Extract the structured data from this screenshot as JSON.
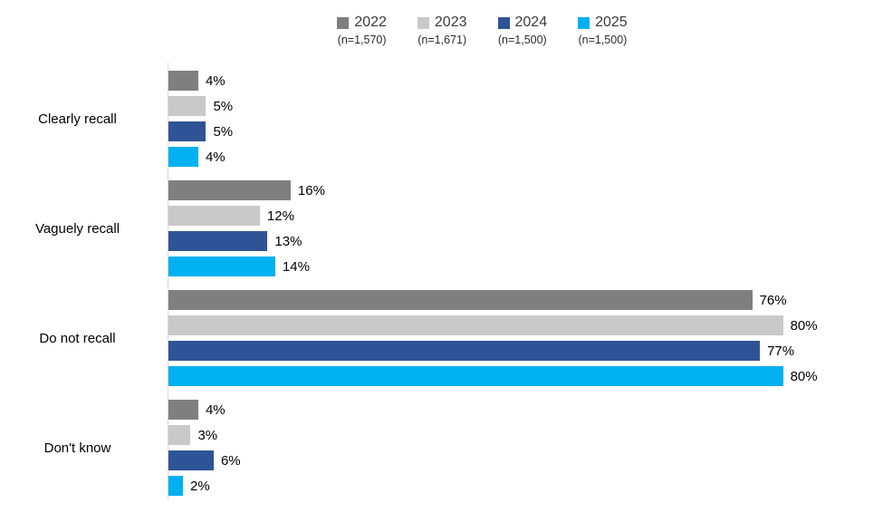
{
  "legend": {
    "items": [
      {
        "label": "2022",
        "n_label": "(n=1,570)",
        "color": "#7f7f7f"
      },
      {
        "label": "2023",
        "n_label": "(n=1,671)",
        "color": "#c9c9c9"
      },
      {
        "label": "2024",
        "n_label": "(n=1,500)",
        "color": "#2f5496"
      },
      {
        "label": "2025",
        "n_label": "(n=1,500)",
        "color": "#00b0f0"
      }
    ]
  },
  "chart_data": {
    "type": "bar",
    "orientation": "horizontal",
    "title": "",
    "xlabel": "",
    "ylabel": "",
    "categories": [
      "Clearly recall",
      "Vaguely recall",
      "Do not recall",
      "Don't know"
    ],
    "series": [
      {
        "name": "2022",
        "n_label": "(n=1,570)",
        "color": "#7f7f7f",
        "values": [
          4,
          16,
          76,
          4
        ]
      },
      {
        "name": "2023",
        "n_label": "(n=1,671)",
        "color": "#c9c9c9",
        "values": [
          5,
          12,
          80,
          3
        ]
      },
      {
        "name": "2024",
        "n_label": "(n=1,500)",
        "color": "#2f5496",
        "values": [
          5,
          13,
          77,
          6
        ]
      },
      {
        "name": "2025",
        "n_label": "(n=1,500)",
        "color": "#00b0f0",
        "values": [
          4,
          14,
          80,
          2
        ]
      }
    ],
    "value_suffix": "%",
    "data_labels": true,
    "xlim": [
      0,
      93
    ],
    "grid": false,
    "legend_position": "top",
    "axis_line_color": "#d9d9d9",
    "background_color": "#ffffff"
  }
}
